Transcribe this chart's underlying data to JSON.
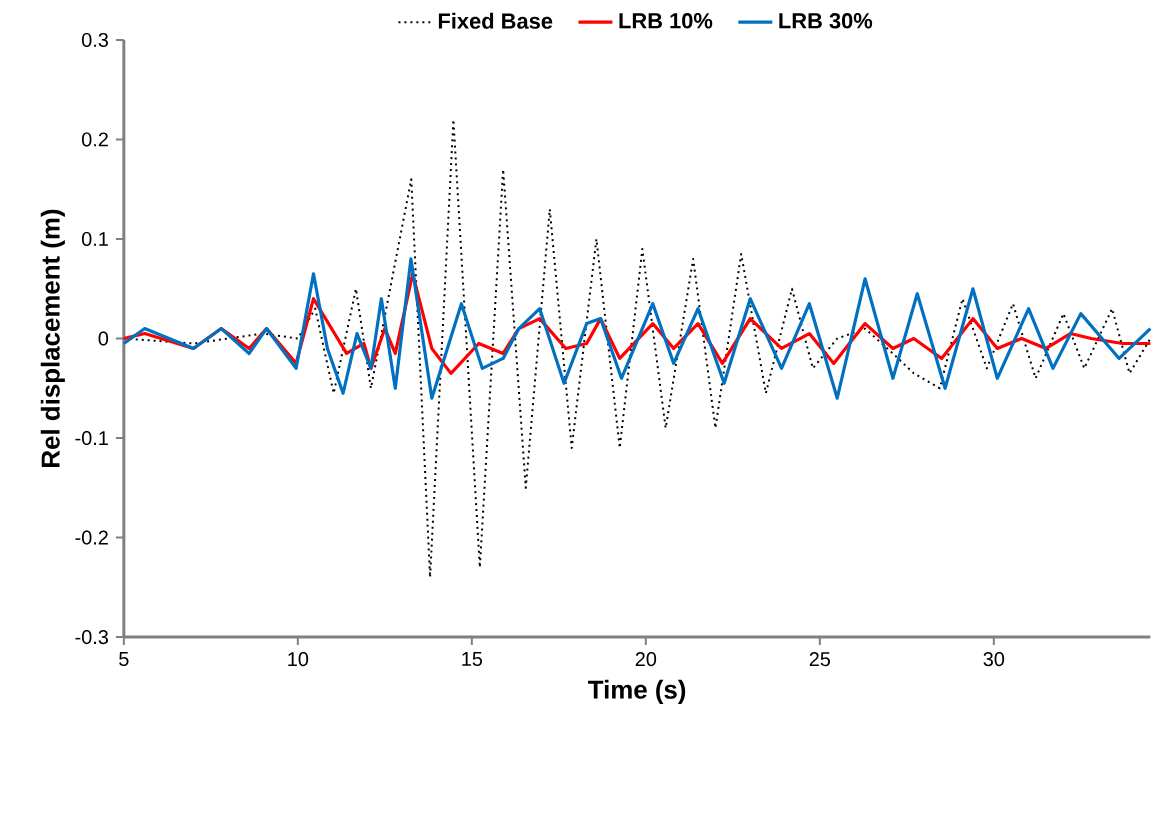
{
  "chart_data": {
    "type": "line",
    "xlabel": "Time (s)",
    "ylabel": "Rel displacement (m)",
    "xlim": [
      5,
      34.5
    ],
    "ylim": [
      -0.3,
      0.3
    ],
    "xticks": [
      5,
      10,
      15,
      20,
      25,
      30
    ],
    "yticks": [
      -0.3,
      -0.2,
      -0.1,
      0,
      0.1,
      0.2,
      0.3
    ],
    "grid": false,
    "legend": "top",
    "marker": "none",
    "series": [
      {
        "name": "Fixed Base",
        "color": "#000000",
        "line_style": "dotted",
        "x": [
          5,
          7,
          9,
          10,
          10.5,
          11.03,
          11.67,
          12.1,
          13.26,
          13.8,
          14.47,
          15.23,
          15.9,
          16.55,
          17.24,
          17.87,
          18.58,
          19.25,
          19.9,
          20.57,
          21.36,
          22.0,
          22.74,
          23.45,
          24.2,
          24.8,
          25.5,
          26.3,
          27.1,
          27.7,
          28.45,
          29.1,
          29.8,
          30.55,
          31.2,
          32.0,
          32.6,
          33.4,
          33.9,
          34.5
        ],
        "values": [
          0,
          -0.005,
          0.005,
          0,
          0.03,
          -0.055,
          0.05,
          -0.05,
          0.16,
          -0.24,
          0.22,
          -0.23,
          0.17,
          -0.15,
          0.13,
          -0.11,
          0.1,
          -0.11,
          0.09,
          -0.09,
          0.08,
          -0.09,
          0.085,
          -0.055,
          0.05,
          -0.03,
          0,
          0.01,
          -0.015,
          -0.035,
          -0.05,
          0.04,
          -0.03,
          0.035,
          -0.04,
          0.025,
          -0.03,
          0.03,
          -0.035,
          0
        ]
      },
      {
        "name": "LRB 10%",
        "color": "#ff0000",
        "line_style": "solid",
        "x": [
          5,
          5.6,
          7.0,
          7.8,
          8.6,
          9.1,
          9.95,
          10.45,
          11.4,
          11.9,
          12.1,
          12.5,
          12.8,
          13.3,
          13.85,
          14.4,
          15.2,
          15.9,
          16.35,
          16.95,
          17.7,
          18.3,
          18.7,
          19.25,
          20.2,
          20.8,
          21.5,
          22.2,
          23.0,
          23.9,
          24.7,
          25.4,
          26.3,
          27.1,
          27.7,
          28.5,
          29.4,
          30.1,
          30.8,
          31.5,
          32.2,
          32.8,
          33.7,
          34.5
        ],
        "values": [
          0,
          0.005,
          -0.01,
          0.01,
          -0.01,
          0.01,
          -0.025,
          0.04,
          -0.015,
          -0.005,
          -0.03,
          0.01,
          -0.015,
          0.065,
          -0.01,
          -0.035,
          -0.005,
          -0.015,
          0.01,
          0.02,
          -0.01,
          -0.005,
          0.02,
          -0.02,
          0.015,
          -0.01,
          0.015,
          -0.025,
          0.02,
          -0.01,
          0.005,
          -0.025,
          0.015,
          -0.01,
          0,
          -0.02,
          0.02,
          -0.01,
          0,
          -0.01,
          0.005,
          0,
          -0.005,
          -0.005
        ]
      },
      {
        "name": "LRB 30%",
        "color": "#0070c0",
        "line_style": "solid",
        "x": [
          5,
          5.6,
          7.0,
          7.8,
          8.6,
          9.1,
          9.95,
          10.45,
          10.85,
          11.3,
          11.7,
          12.1,
          12.4,
          12.8,
          13.25,
          13.85,
          14.7,
          15.3,
          15.9,
          16.35,
          16.95,
          17.65,
          18.3,
          18.7,
          19.3,
          20.2,
          20.8,
          21.5,
          22.25,
          23.0,
          23.9,
          24.7,
          25.5,
          26.3,
          27.1,
          27.8,
          28.6,
          29.4,
          30.1,
          31.0,
          31.7,
          32.5,
          33.6,
          34.5
        ],
        "values": [
          -0.005,
          0.01,
          -0.01,
          0.01,
          -0.015,
          0.01,
          -0.03,
          0.065,
          -0.01,
          -0.055,
          0.005,
          -0.03,
          0.04,
          -0.05,
          0.08,
          -0.06,
          0.035,
          -0.03,
          -0.02,
          0.01,
          0.03,
          -0.045,
          0.015,
          0.02,
          -0.04,
          0.035,
          -0.025,
          0.03,
          -0.045,
          0.04,
          -0.03,
          0.035,
          -0.06,
          0.06,
          -0.04,
          0.045,
          -0.05,
          0.05,
          -0.04,
          0.03,
          -0.03,
          0.025,
          -0.02,
          0.01
        ]
      }
    ]
  }
}
